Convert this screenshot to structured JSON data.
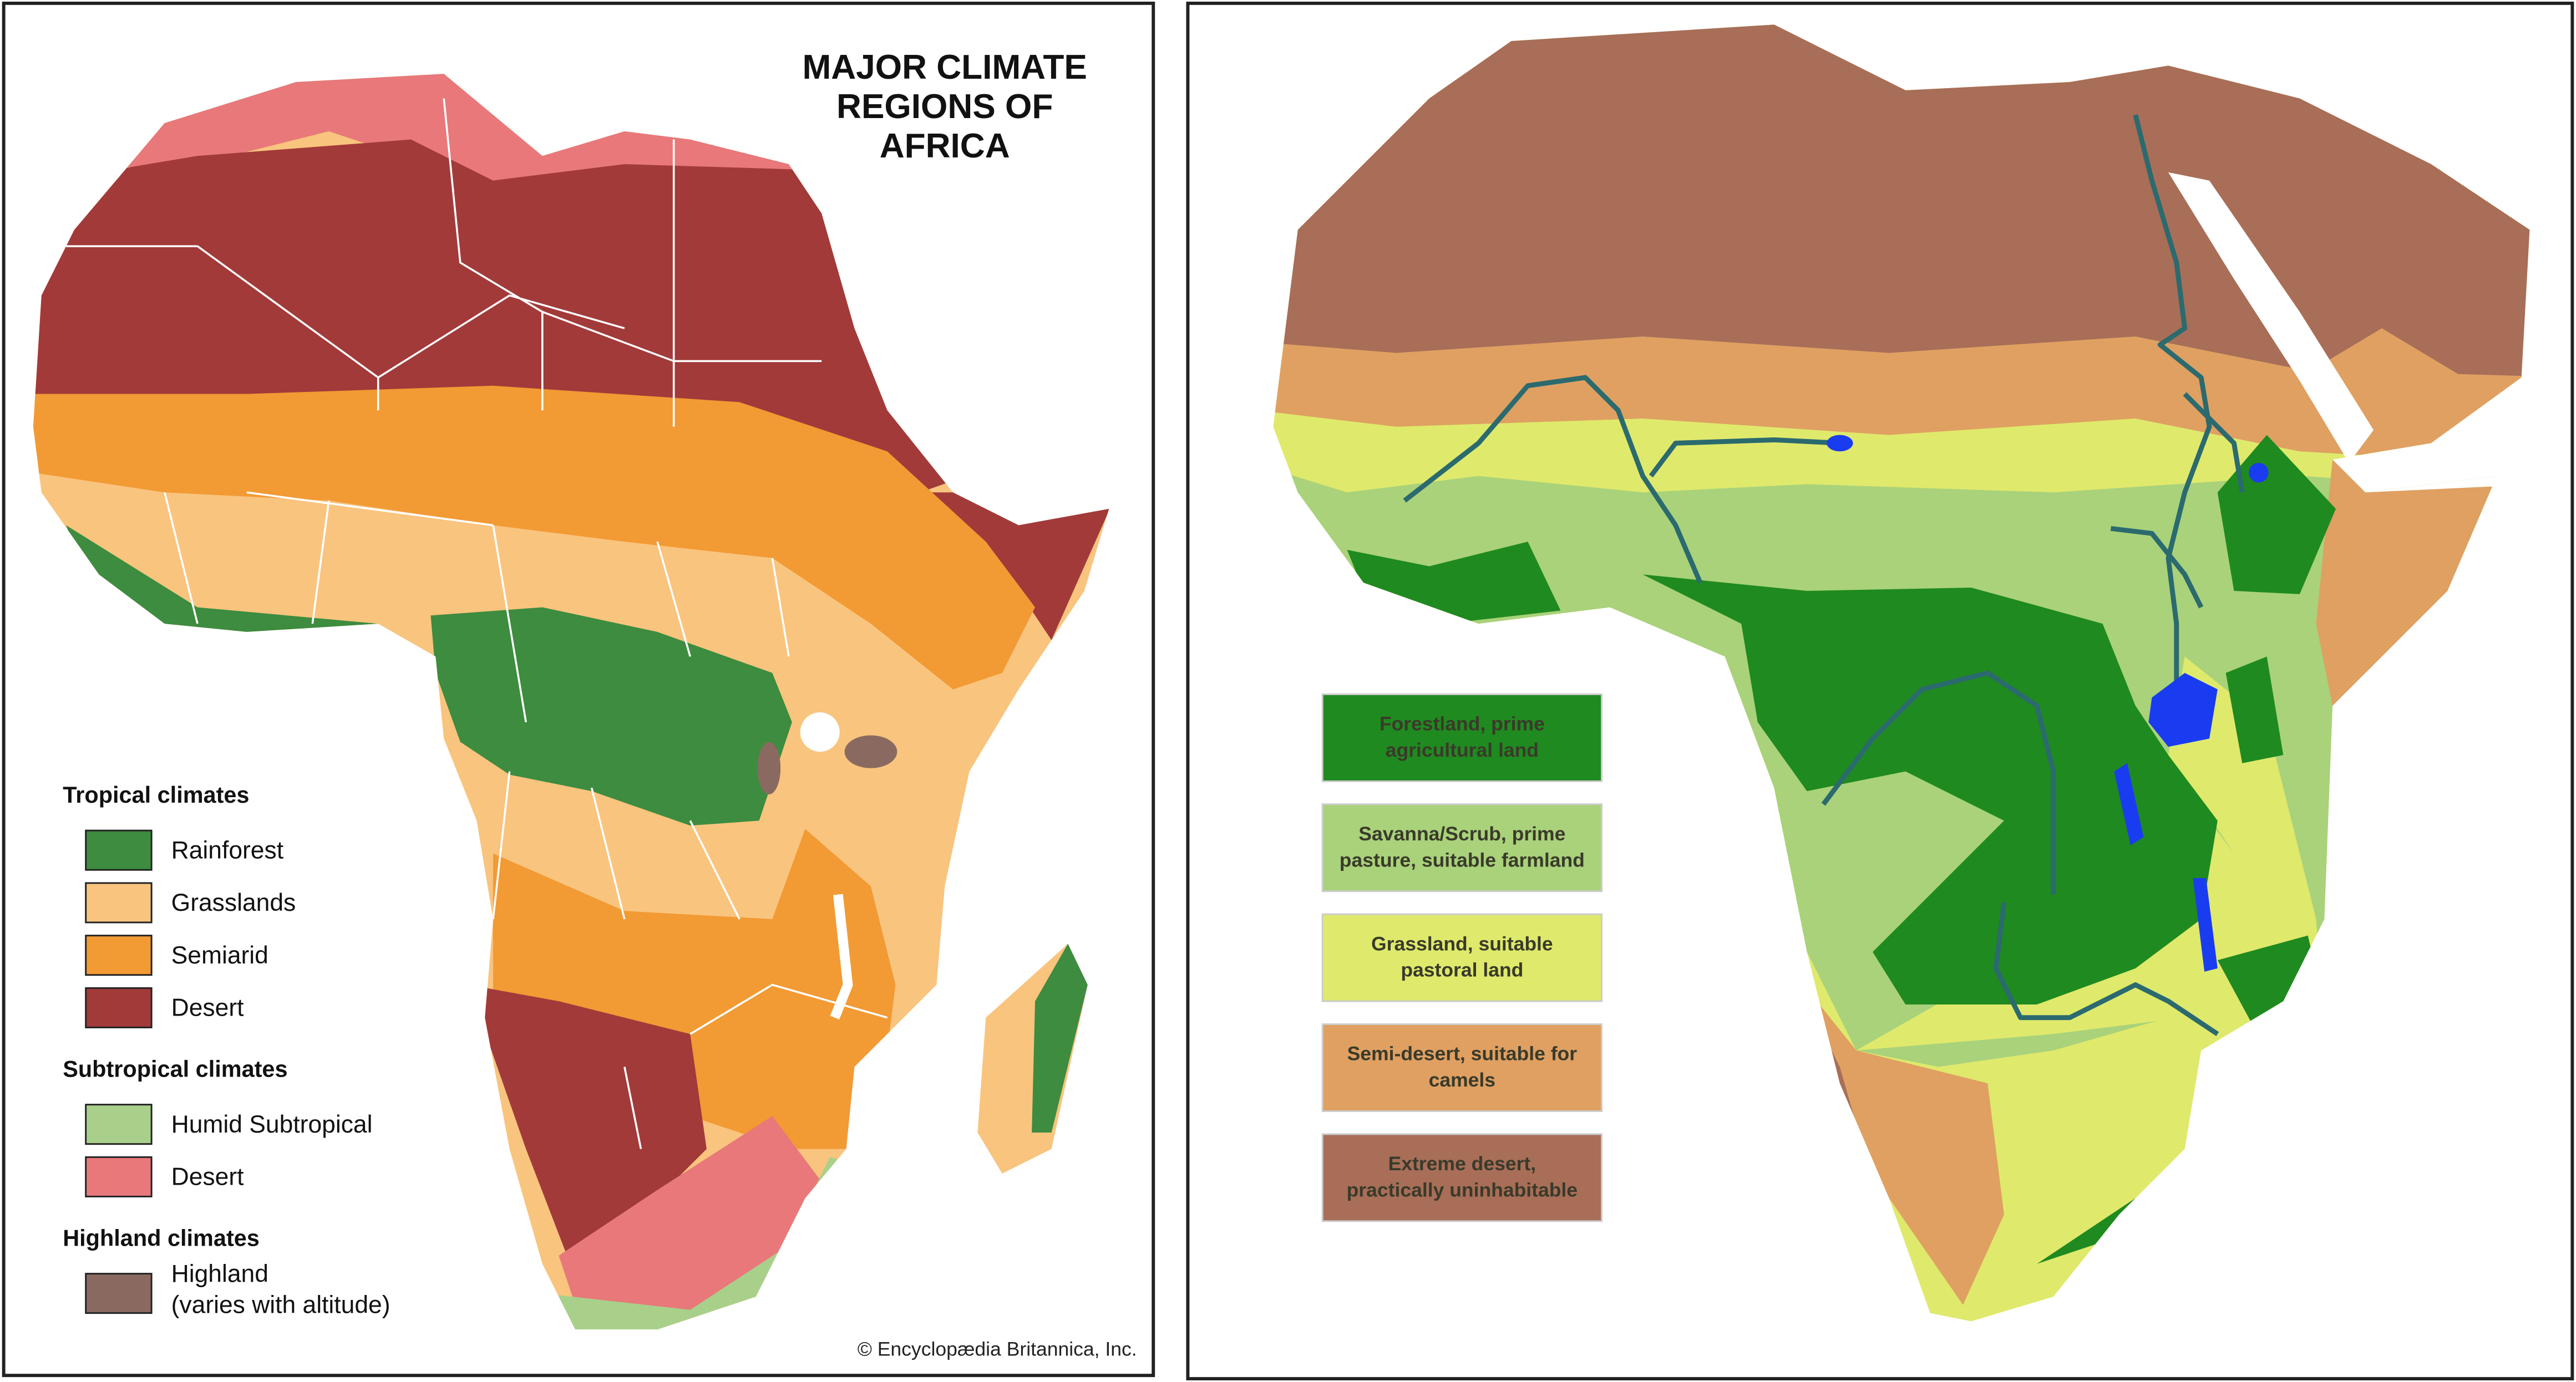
{
  "left_map": {
    "title_lines": [
      "MAJOR CLIMATE",
      "REGIONS OF",
      "AFRICA"
    ],
    "legend": [
      {
        "heading": "Tropical climates",
        "items": [
          {
            "label_lines": [
              "Rainforest"
            ],
            "color": "#3d8c3f"
          },
          {
            "label_lines": [
              "Grasslands"
            ],
            "color": "#f9c47e"
          },
          {
            "label_lines": [
              "Semiarid"
            ],
            "color": "#f29a34"
          },
          {
            "label_lines": [
              "Desert"
            ],
            "color": "#a23a3a"
          }
        ]
      },
      {
        "heading": "Subtropical climates",
        "items": [
          {
            "label_lines": [
              "Humid Subtropical"
            ],
            "color": "#a9d08b"
          },
          {
            "label_lines": [
              "Desert"
            ],
            "color": "#e8787a"
          }
        ]
      },
      {
        "heading": "Highland climates",
        "items": [
          {
            "label_lines": [
              "Highland",
              "(varies with altitude)"
            ],
            "color": "#8a6a60"
          }
        ]
      }
    ],
    "credit": "© Encyclopædia Britannica, Inc."
  },
  "right_map": {
    "legend": [
      {
        "label_lines": [
          "Forestland, prime",
          "agricultural land"
        ],
        "color": "#1f8a1f"
      },
      {
        "label_lines": [
          "Savanna/Scrub, prime",
          "pasture, suitable farmland"
        ],
        "color": "#a9d27a"
      },
      {
        "label_lines": [
          "Grassland, suitable",
          "pastoral land"
        ],
        "color": "#dfe96c"
      },
      {
        "label_lines": [
          "Semi-desert, suitable for",
          "camels"
        ],
        "color": "#dfa062"
      },
      {
        "label_lines": [
          "Extreme desert,",
          "practically uninhabitable"
        ],
        "color": "#a86e58"
      }
    ]
  }
}
